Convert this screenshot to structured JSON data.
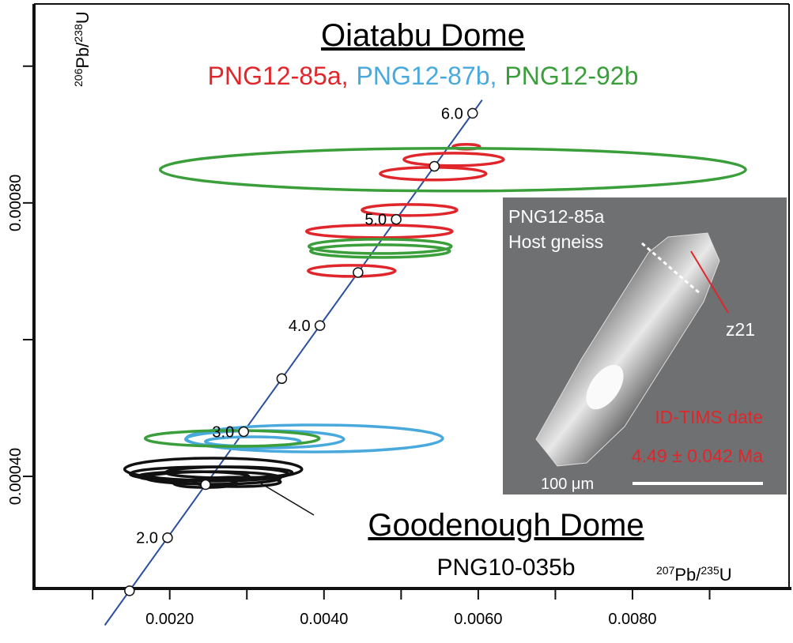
{
  "chart_data": {
    "type": "concordia",
    "title": "Oiatabu Dome",
    "group_label": "Goodenough Dome",
    "legend_separator": ",",
    "x_label": [
      {
        "text": "207",
        "sup": true
      },
      {
        "text": "Pb/"
      },
      {
        "text": "235",
        "sup": true
      },
      {
        "text": "U"
      }
    ],
    "y_label": [
      {
        "text": "206",
        "sup": true
      },
      {
        "text": "Pb/"
      },
      {
        "text": "238",
        "sup": true
      },
      {
        "text": "U"
      }
    ],
    "xlim": [
      0.00024,
      0.01003
    ],
    "ylim": [
      0.000236,
      0.001091
    ],
    "xticks": [
      {
        "value": 0.002,
        "label": "0.0020"
      },
      {
        "value": 0.004,
        "label": "0.0040"
      },
      {
        "value": 0.006,
        "label": "0.0060"
      },
      {
        "value": 0.008,
        "label": "0.0080"
      }
    ],
    "xminor": [
      0.001,
      0.003,
      0.005,
      0.007,
      0.009
    ],
    "yticks": [
      {
        "value": 0.0004,
        "label": "0.00040"
      },
      {
        "value": 0.0008,
        "label": "0.00080"
      }
    ],
    "yminor": [
      0.0006,
      0.001
    ],
    "concordia": {
      "color": "#2b4f9e",
      "ages": [
        1.5,
        {
          "value": 2,
          "label": "2.0"
        },
        2.5,
        {
          "value": 3,
          "label": "3.0"
        },
        3.5,
        {
          "value": 4,
          "label": "4.0"
        },
        4.5,
        {
          "value": 5,
          "label": "5.0"
        },
        5.5,
        {
          "value": 6,
          "label": "6.0"
        }
      ],
      "x": [
        0.0014784,
        0.0019716,
        0.0024651,
        0.002959,
        0.003453,
        0.0039472,
        0.0044416,
        0.0049364,
        0.0054314,
        0.0059266
      ],
      "y": [
        0.0002327,
        0.00031027,
        0.0003879,
        0.0004654,
        0.000543,
        0.0006206,
        0.0006982,
        0.0007759,
        0.0008535,
        0.0009311
      ]
    },
    "series": [
      {
        "name": "PNG12-85a",
        "color": "#e0262b",
        "in_legend": true,
        "x": [
          0.005846,
          0.005682,
          0.005415,
          0.005108,
          0.004718,
          0.004359
        ],
        "y": [
          0.0008821,
          0.0008636,
          0.0008428,
          0.0007896,
          0.0007584,
          0.0007006
        ],
        "x_err": [
          0.000174,
          0.000646,
          0.000687,
          0.000615,
          0.000944,
          0.000564
        ],
        "y_err": [
          3.5e-06,
          9.2e-06,
          9.2e-06,
          8.1e-06,
          9.2e-06,
          8.1e-06
        ]
      },
      {
        "name": "PNG12-87b",
        "color": "#4aa9dc",
        "in_legend": true,
        "x": [
          0.003877,
          0.003231,
          0.003077
        ],
        "y": [
          0.0004555,
          0.0004543,
          0.0004509
        ],
        "x_err": [
          0.001662,
          0.001026,
          0.000615
        ],
        "y_err": [
          1.97e-05,
          1.27e-05,
          6.9e-06
        ]
      },
      {
        "name": "PNG12-92b",
        "color": "#3a9f3a",
        "in_legend": true,
        "x": [
          0.005672,
          0.004728,
          0.004728,
          0.00281
        ],
        "y": [
          0.0008486,
          0.0007364,
          0.0007295,
          0.0004555
        ],
        "x_err": [
          0.003795,
          0.000923,
          0.000902,
          0.001128
        ],
        "y_err": [
          3.12e-05,
          1.04e-05,
          9.2e-06,
          1.16e-05
        ]
      },
      {
        "name": "PNG10-035b",
        "color": "#111111",
        "in_legend": false,
        "x": [
          0.002564,
          0.002513,
          0.002564,
          0.002769,
          0.002308,
          0.002872,
          0.002462
        ],
        "y": [
          0.0004104,
          0.0004035,
          0.0003977,
          0.0004058,
          0.0004,
          0.0003919,
          0.0003896
        ],
        "x_err": [
          0.001149,
          0.001026,
          0.000872,
          0.00082,
          0.000718,
          0.000564,
          0.00041
        ],
        "y_err": [
          1.62e-05,
          1.04e-05,
          9.2e-06,
          8.1e-06,
          6.9e-06,
          6.9e-06,
          5.8e-06
        ]
      }
    ],
    "inset": {
      "sample": "PNG12-85a",
      "rock": "Host gneiss",
      "grain": "z21",
      "method": "ID-TIMS date",
      "date": "4.49 ± 0.042 Ma",
      "scale": "100 μm"
    }
  }
}
